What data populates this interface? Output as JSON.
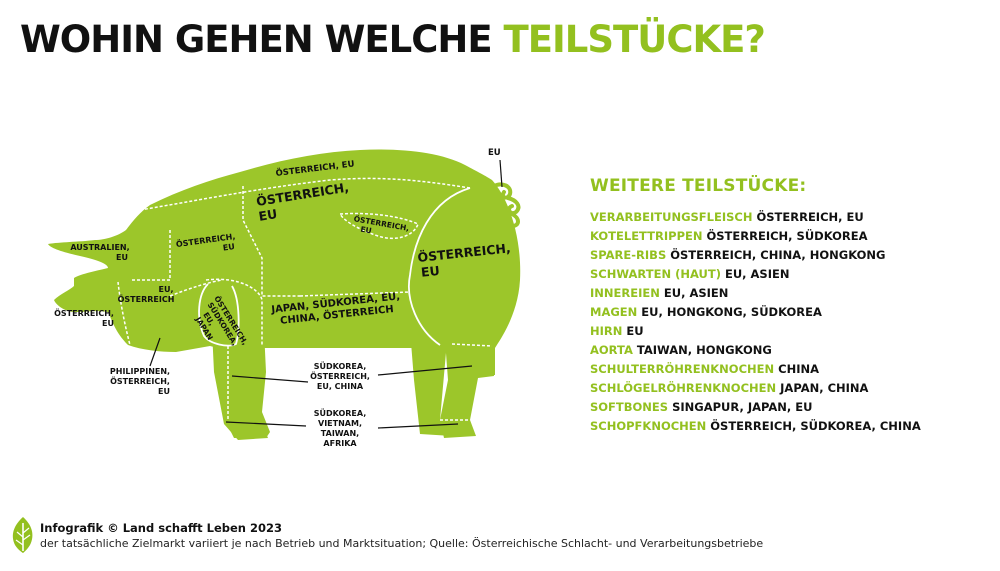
{
  "title": {
    "main": "WOHIN GEHEN WELCHE",
    "accent": "TEILSTÜCKE?"
  },
  "colors": {
    "accent": "#93c01f",
    "pig": "#9cc62a",
    "text": "#111111"
  },
  "diagram_labels": {
    "ruecken_oben": "ÖSTERREICH, EU",
    "ruecken": [
      "ÖSTERREICH,",
      "EU"
    ],
    "nacken": [
      "ÖSTERREICH,",
      "EU"
    ],
    "ohr": [
      "AUSTRALIEN,",
      "EU"
    ],
    "kopf": [
      "ÖSTERREICH,",
      "EU"
    ],
    "backe": [
      "EU,",
      "ÖSTERREICH"
    ],
    "schulter": [
      "ÖSTERREICH,",
      "SÜDKOREA,",
      "EU,",
      "JAPAN"
    ],
    "lende": [
      "ÖSTERREICH,",
      "EU"
    ],
    "bauch": [
      "JAPAN, SÜDKOREA, EU,",
      "CHINA, ÖSTERREICH"
    ],
    "schinken": [
      "ÖSTERREICH,",
      "EU"
    ],
    "schwanz": "EU",
    "hals": [
      "PHILIPPINEN,",
      "ÖSTERREICH,",
      "EU"
    ],
    "stelze": [
      "SÜDKOREA,",
      "ÖSTERREICH,",
      "EU, CHINA"
    ],
    "fuesse": [
      "SÜDKOREA,",
      "VIETNAM,",
      "TAIWAN,",
      "AFRIKA"
    ]
  },
  "legend": {
    "title": "WEITERE TEILSTÜCKE:",
    "items": [
      {
        "part": "VERARBEITUNGSFLEISCH",
        "dest": "ÖSTERREICH, EU"
      },
      {
        "part": "KOTELETTRIPPEN",
        "dest": "ÖSTERREICH, SÜDKOREA"
      },
      {
        "part": "SPARE-RIBS",
        "dest": "ÖSTERREICH, CHINA, HONGKONG"
      },
      {
        "part": "SCHWARTEN (HAUT)",
        "dest": "EU, ASIEN"
      },
      {
        "part": "INNEREIEN",
        "dest": "EU, ASIEN"
      },
      {
        "part": "MAGEN",
        "dest": "EU, HONGKONG, SÜDKOREA"
      },
      {
        "part": "HIRN",
        "dest": "EU"
      },
      {
        "part": "AORTA",
        "dest": "TAIWAN, HONGKONG"
      },
      {
        "part": "SCHULTERRÖHRENKNOCHEN",
        "dest": "CHINA"
      },
      {
        "part": "SCHLÖGELRÖHRENKNOCHEN",
        "dest": "JAPAN, CHINA"
      },
      {
        "part": "SOFTBONES",
        "dest": "SINGAPUR, JAPAN, EU"
      },
      {
        "part": "SCHOPFKNOCHEN",
        "dest": "ÖSTERREICH, SÜDKOREA, CHINA"
      }
    ]
  },
  "footer": {
    "credit": "Infografik © Land schafft Leben 2023",
    "note": "der tatsächliche Zielmarkt variiert je nach Betrieb und Marktsituation; Quelle: Österreichische Schlacht- und Verarbeitungsbetriebe"
  }
}
